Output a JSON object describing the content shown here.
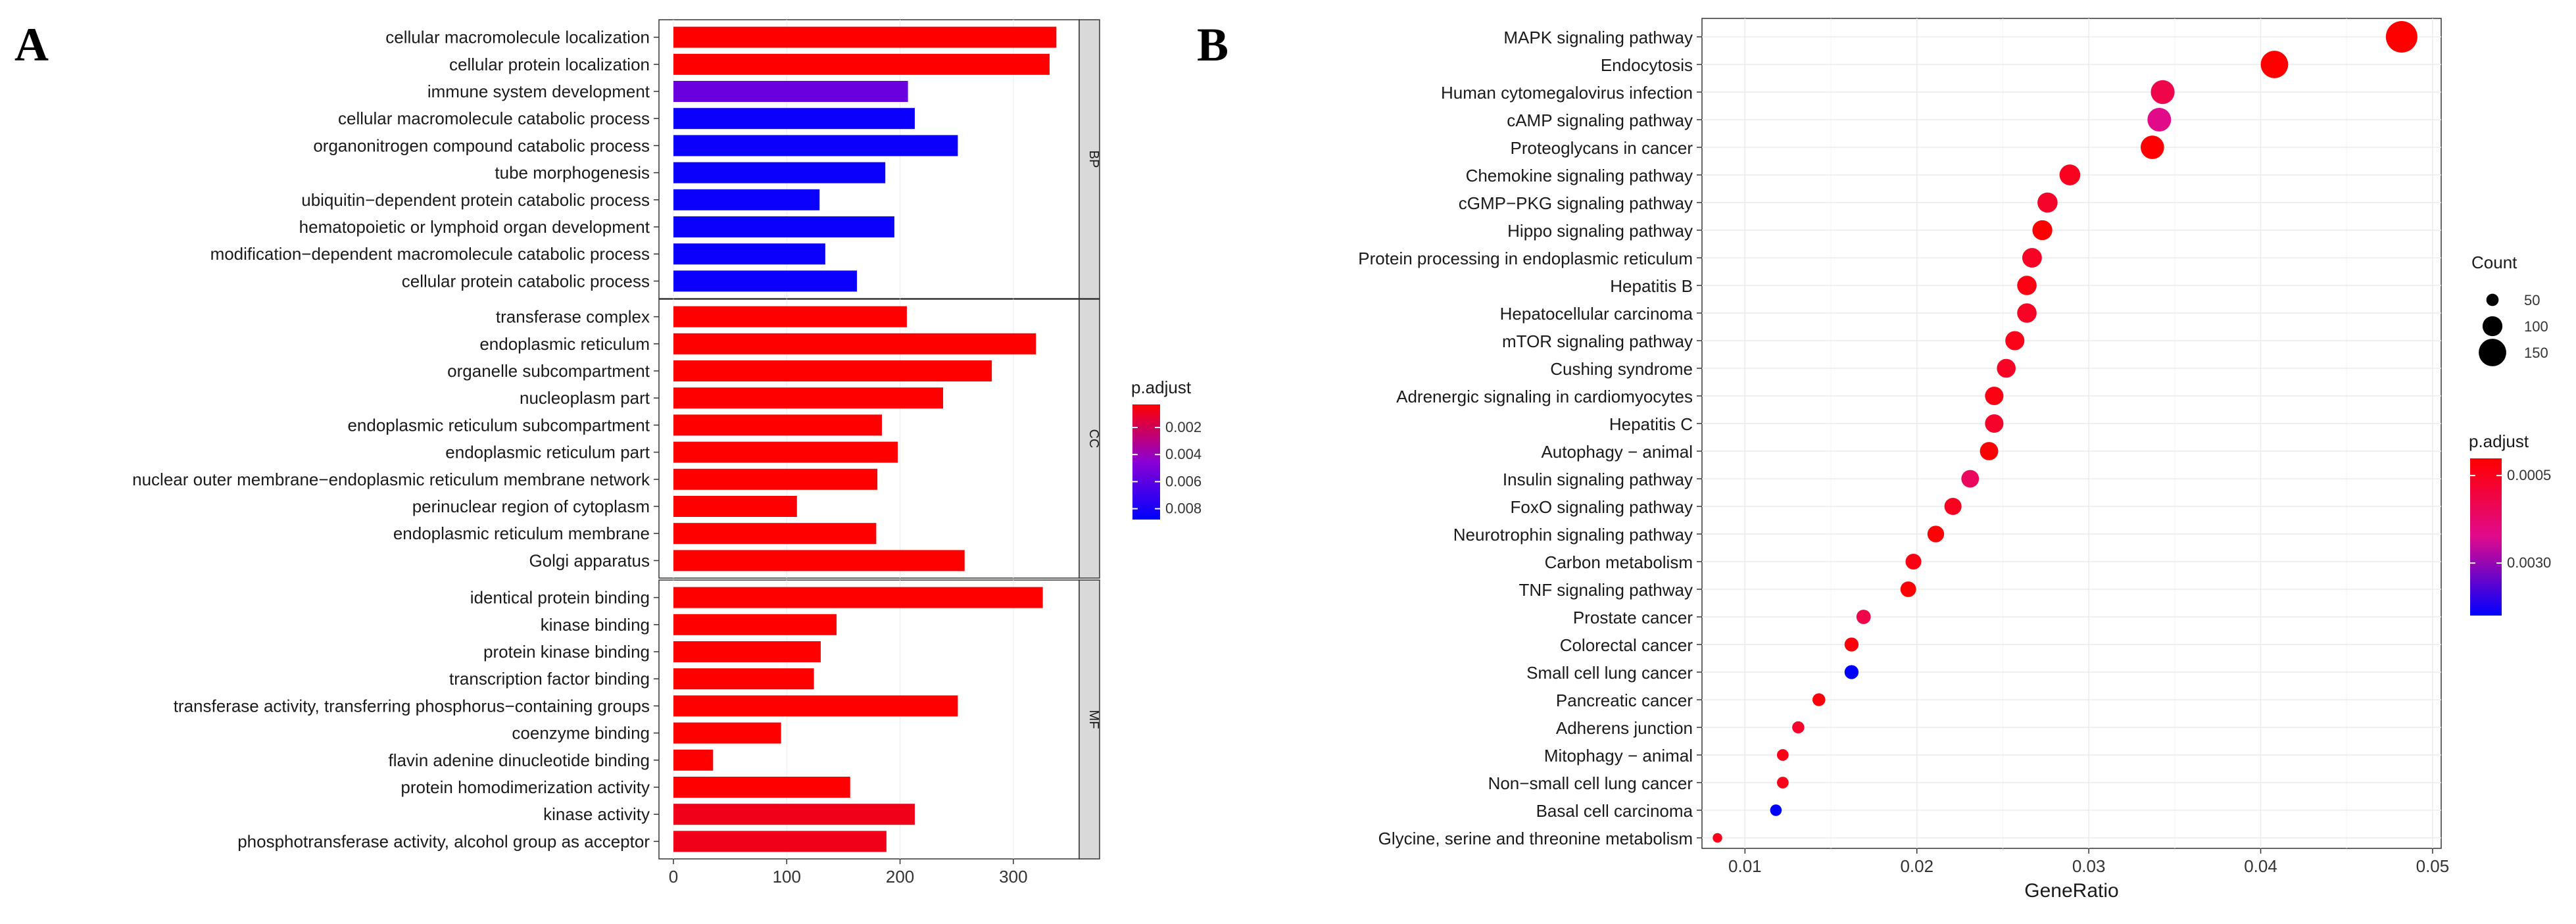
{
  "panels": {
    "a_label": "A",
    "b_label": "B"
  },
  "colors": {
    "low": "#ff0000",
    "high": "#0000ff",
    "mid": "#8a00d4",
    "strip_fill": "#d9d9d9",
    "grid": "#ebebeb"
  },
  "chart_data": [
    {
      "id": "A",
      "type": "bar",
      "orientation": "horizontal",
      "xlim": [
        0,
        350
      ],
      "x_ticks": [
        0,
        100,
        200,
        300
      ],
      "legend": {
        "title": "p.adjust",
        "ticks": [
          0.002,
          0.004,
          0.006,
          0.008
        ],
        "tick_labels": [
          "0.002",
          "0.004",
          "0.006",
          "0.008"
        ],
        "range": [
          0.0003,
          0.0088
        ]
      },
      "groups": [
        {
          "name": "BP",
          "bars": [
            {
              "label": "cellular macromolecule localization",
              "value": 338,
              "p_adjust": 0.0003
            },
            {
              "label": "cellular protein localization",
              "value": 332,
              "p_adjust": 0.0003
            },
            {
              "label": "immune system development",
              "value": 207,
              "p_adjust": 0.0055
            },
            {
              "label": "cellular macromolecule catabolic process",
              "value": 213,
              "p_adjust": 0.0085
            },
            {
              "label": "organonitrogen compound catabolic process",
              "value": 251,
              "p_adjust": 0.0085
            },
            {
              "label": "tube morphogenesis",
              "value": 187,
              "p_adjust": 0.0085
            },
            {
              "label": "ubiquitin−dependent protein catabolic process",
              "value": 129,
              "p_adjust": 0.0085
            },
            {
              "label": "hematopoietic or lymphoid organ development",
              "value": 195,
              "p_adjust": 0.0085
            },
            {
              "label": "modification−dependent macromolecule catabolic process",
              "value": 134,
              "p_adjust": 0.0085
            },
            {
              "label": "cellular protein catabolic process",
              "value": 162,
              "p_adjust": 0.0085
            }
          ]
        },
        {
          "name": "CC",
          "bars": [
            {
              "label": "transferase complex",
              "value": 206,
              "p_adjust": 0.0003
            },
            {
              "label": "endoplasmic reticulum",
              "value": 320,
              "p_adjust": 0.0003
            },
            {
              "label": "organelle subcompartment",
              "value": 281,
              "p_adjust": 0.0003
            },
            {
              "label": "nucleoplasm part",
              "value": 238,
              "p_adjust": 0.0003
            },
            {
              "label": "endoplasmic reticulum subcompartment",
              "value": 184,
              "p_adjust": 0.0003
            },
            {
              "label": "endoplasmic reticulum part",
              "value": 198,
              "p_adjust": 0.0003
            },
            {
              "label": "nuclear outer membrane−endoplasmic reticulum membrane network",
              "value": 180,
              "p_adjust": 0.0003
            },
            {
              "label": "perinuclear region of cytoplasm",
              "value": 109,
              "p_adjust": 0.0003
            },
            {
              "label": "endoplasmic reticulum membrane",
              "value": 179,
              "p_adjust": 0.0003
            },
            {
              "label": "Golgi apparatus",
              "value": 257,
              "p_adjust": 0.0003
            }
          ]
        },
        {
          "name": "MF",
          "bars": [
            {
              "label": "identical protein binding",
              "value": 326,
              "p_adjust": 0.0003
            },
            {
              "label": "kinase binding",
              "value": 144,
              "p_adjust": 0.0003
            },
            {
              "label": "protein kinase binding",
              "value": 130,
              "p_adjust": 0.0003
            },
            {
              "label": "transcription factor binding",
              "value": 124,
              "p_adjust": 0.0003
            },
            {
              "label": "transferase activity, transferring phosphorus−containing groups",
              "value": 251,
              "p_adjust": 0.0003
            },
            {
              "label": "coenzyme binding",
              "value": 95,
              "p_adjust": 0.0003
            },
            {
              "label": "flavin adenine dinucleotide binding",
              "value": 35,
              "p_adjust": 0.0003
            },
            {
              "label": "protein homodimerization activity",
              "value": 156,
              "p_adjust": 0.0003
            },
            {
              "label": "kinase activity",
              "value": 213,
              "p_adjust": 0.0008
            },
            {
              "label": "phosphotransferase activity, alcohol group as acceptor",
              "value": 188,
              "p_adjust": 0.0008
            }
          ]
        }
      ]
    },
    {
      "id": "B",
      "type": "scatter",
      "xlabel": "GeneRatio",
      "xlim": [
        0.0075,
        0.0505
      ],
      "x_ticks": [
        0.01,
        0.02,
        0.03,
        0.04,
        0.05
      ],
      "x_tick_labels": [
        "0.01",
        "0.02",
        "0.03",
        "0.04",
        "0.05"
      ],
      "size_legend": {
        "title": "Count",
        "values": [
          50,
          100,
          150
        ],
        "labels": [
          "50",
          "100",
          "150"
        ]
      },
      "color_legend": {
        "title": "p.adjust",
        "ticks": [
          0.0005,
          0.003
        ],
        "tick_labels": [
          "0.0005",
          "0.0030"
        ],
        "range": [
          1e-05,
          0.0045
        ]
      },
      "points": [
        {
          "label": "MAPK signaling pathway",
          "x": 0.0482,
          "count": 160,
          "p_adjust": 1e-05
        },
        {
          "label": "Endocytosis",
          "x": 0.0408,
          "count": 135,
          "p_adjust": 1e-05
        },
        {
          "label": "Human cytomegalovirus infection",
          "x": 0.0343,
          "count": 113,
          "p_adjust": 0.0012
        },
        {
          "label": "cAMP signaling pathway",
          "x": 0.0341,
          "count": 112,
          "p_adjust": 0.0022
        },
        {
          "label": "Proteoglycans in cancer",
          "x": 0.0337,
          "count": 111,
          "p_adjust": 5e-05
        },
        {
          "label": "Chemokine signaling pathway",
          "x": 0.0289,
          "count": 95,
          "p_adjust": 0.0005
        },
        {
          "label": "cGMP−PKG signaling pathway",
          "x": 0.0276,
          "count": 91,
          "p_adjust": 0.0007
        },
        {
          "label": "Hippo signaling pathway",
          "x": 0.0273,
          "count": 90,
          "p_adjust": 1e-05
        },
        {
          "label": "Protein processing in endoplasmic reticulum",
          "x": 0.0267,
          "count": 88,
          "p_adjust": 0.0006
        },
        {
          "label": "Hepatitis B",
          "x": 0.0264,
          "count": 87,
          "p_adjust": 0.0003
        },
        {
          "label": "Hepatocellular carcinoma",
          "x": 0.0264,
          "count": 87,
          "p_adjust": 0.0006
        },
        {
          "label": "mTOR signaling pathway",
          "x": 0.0257,
          "count": 85,
          "p_adjust": 0.0004
        },
        {
          "label": "Cushing syndrome",
          "x": 0.0252,
          "count": 83,
          "p_adjust": 0.0006
        },
        {
          "label": "Adrenergic signaling in cardiomyocytes",
          "x": 0.0245,
          "count": 81,
          "p_adjust": 0.0003
        },
        {
          "label": "Hepatitis C",
          "x": 0.0245,
          "count": 81,
          "p_adjust": 0.0007
        },
        {
          "label": "Autophagy − animal",
          "x": 0.0242,
          "count": 80,
          "p_adjust": 5e-05
        },
        {
          "label": "Insulin signaling pathway",
          "x": 0.0231,
          "count": 76,
          "p_adjust": 0.0015
        },
        {
          "label": "FoxO signaling pathway",
          "x": 0.0221,
          "count": 73,
          "p_adjust": 0.0005
        },
        {
          "label": "Neurotrophin signaling pathway",
          "x": 0.0211,
          "count": 70,
          "p_adjust": 0.0001
        },
        {
          "label": "Carbon metabolism",
          "x": 0.0198,
          "count": 65,
          "p_adjust": 0.0003
        },
        {
          "label": "TNF signaling pathway",
          "x": 0.0195,
          "count": 64,
          "p_adjust": 5e-05
        },
        {
          "label": "Prostate cancer",
          "x": 0.0169,
          "count": 56,
          "p_adjust": 0.0012
        },
        {
          "label": "Colorectal cancer",
          "x": 0.0162,
          "count": 54,
          "p_adjust": 0.0002
        },
        {
          "label": "Small cell lung cancer",
          "x": 0.0162,
          "count": 54,
          "p_adjust": 0.0045
        },
        {
          "label": "Pancreatic cancer",
          "x": 0.0143,
          "count": 47,
          "p_adjust": 0.0002
        },
        {
          "label": "Adherens junction",
          "x": 0.0131,
          "count": 43,
          "p_adjust": 0.0007
        },
        {
          "label": "Mitophagy − animal",
          "x": 0.0122,
          "count": 40,
          "p_adjust": 0.0004
        },
        {
          "label": "Non−small cell lung cancer",
          "x": 0.0122,
          "count": 40,
          "p_adjust": 0.0004
        },
        {
          "label": "Basal cell carcinoma",
          "x": 0.0118,
          "count": 39,
          "p_adjust": 0.0045
        },
        {
          "label": "Glycine, serine and threonine metabolism",
          "x": 0.0084,
          "count": 27,
          "p_adjust": 0.0004
        }
      ]
    }
  ]
}
